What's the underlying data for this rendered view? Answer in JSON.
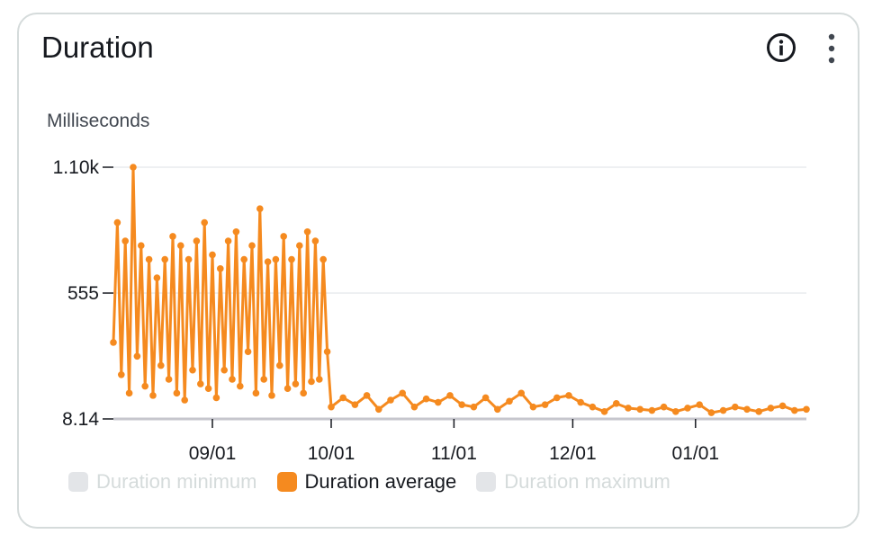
{
  "widget": {
    "title": "Duration",
    "info_icon": "info-circle-icon",
    "menu_icon": "more-vertical-icon"
  },
  "chart_data": {
    "type": "line",
    "ylabel": "Milliseconds",
    "y_ticks": [
      "1.10k",
      "555",
      "8.14"
    ],
    "ylim": [
      8.14,
      1100
    ],
    "x_ticks": [
      "09/01",
      "10/01",
      "11/01",
      "12/01",
      "01/01"
    ],
    "x_tick_dates": [
      "2023-09-01",
      "2023-10-01",
      "2023-11-01",
      "2023-12-01",
      "2024-01-01"
    ],
    "xlim": [
      "2023-08-07",
      "2024-01-29"
    ],
    "grid": true,
    "legend_position": "bottom",
    "series": [
      {
        "name": "Duration minimum",
        "visible": false,
        "color": "#d5dbdb",
        "values": []
      },
      {
        "name": "Duration average",
        "visible": true,
        "color": "#f58a1f",
        "x": [
          "2023-08-07",
          "2023-08-08",
          "2023-08-09",
          "2023-08-10",
          "2023-08-11",
          "2023-08-12",
          "2023-08-13",
          "2023-08-14",
          "2023-08-15",
          "2023-08-16",
          "2023-08-17",
          "2023-08-18",
          "2023-08-19",
          "2023-08-20",
          "2023-08-21",
          "2023-08-22",
          "2023-08-23",
          "2023-08-24",
          "2023-08-25",
          "2023-08-26",
          "2023-08-27",
          "2023-08-28",
          "2023-08-29",
          "2023-08-30",
          "2023-08-31",
          "2023-09-01",
          "2023-09-02",
          "2023-09-03",
          "2023-09-04",
          "2023-09-05",
          "2023-09-06",
          "2023-09-07",
          "2023-09-08",
          "2023-09-09",
          "2023-09-10",
          "2023-09-11",
          "2023-09-12",
          "2023-09-13",
          "2023-09-14",
          "2023-09-15",
          "2023-09-16",
          "2023-09-17",
          "2023-09-18",
          "2023-09-19",
          "2023-09-20",
          "2023-09-21",
          "2023-09-22",
          "2023-09-23",
          "2023-09-24",
          "2023-09-25",
          "2023-09-26",
          "2023-09-27",
          "2023-09-28",
          "2023-09-29",
          "2023-09-30",
          "2023-10-01",
          "2023-10-04",
          "2023-10-07",
          "2023-10-10",
          "2023-10-13",
          "2023-10-16",
          "2023-10-19",
          "2023-10-22",
          "2023-10-25",
          "2023-10-28",
          "2023-10-31",
          "2023-11-03",
          "2023-11-06",
          "2023-11-09",
          "2023-11-12",
          "2023-11-15",
          "2023-11-18",
          "2023-11-21",
          "2023-11-24",
          "2023-11-27",
          "2023-11-30",
          "2023-12-03",
          "2023-12-06",
          "2023-12-09",
          "2023-12-12",
          "2023-12-15",
          "2023-12-18",
          "2023-12-21",
          "2023-12-24",
          "2023-12-27",
          "2023-12-30",
          "2024-01-02",
          "2024-01-05",
          "2024-01-08",
          "2024-01-11",
          "2024-01-14",
          "2024-01-17",
          "2024-01-20",
          "2024-01-23",
          "2024-01-26",
          "2024-01-29"
        ],
        "values": [
          340,
          860,
          200,
          780,
          120,
          1100,
          280,
          760,
          150,
          700,
          110,
          620,
          240,
          700,
          180,
          800,
          120,
          760,
          90,
          700,
          220,
          780,
          160,
          860,
          140,
          720,
          100,
          660,
          220,
          780,
          180,
          820,
          150,
          700,
          300,
          760,
          120,
          920,
          180,
          690,
          110,
          700,
          240,
          800,
          140,
          700,
          160,
          760,
          120,
          820,
          170,
          780,
          180,
          700,
          300,
          60,
          100,
          70,
          110,
          50,
          90,
          120,
          60,
          95,
          80,
          110,
          70,
          60,
          100,
          50,
          85,
          120,
          60,
          70,
          100,
          110,
          80,
          60,
          40,
          75,
          55,
          50,
          45,
          60,
          40,
          55,
          70,
          35,
          45,
          60,
          50,
          40,
          55,
          65,
          45,
          50
        ]
      },
      {
        "name": "Duration maximum",
        "visible": false,
        "color": "#d5dbdb",
        "values": []
      }
    ]
  }
}
